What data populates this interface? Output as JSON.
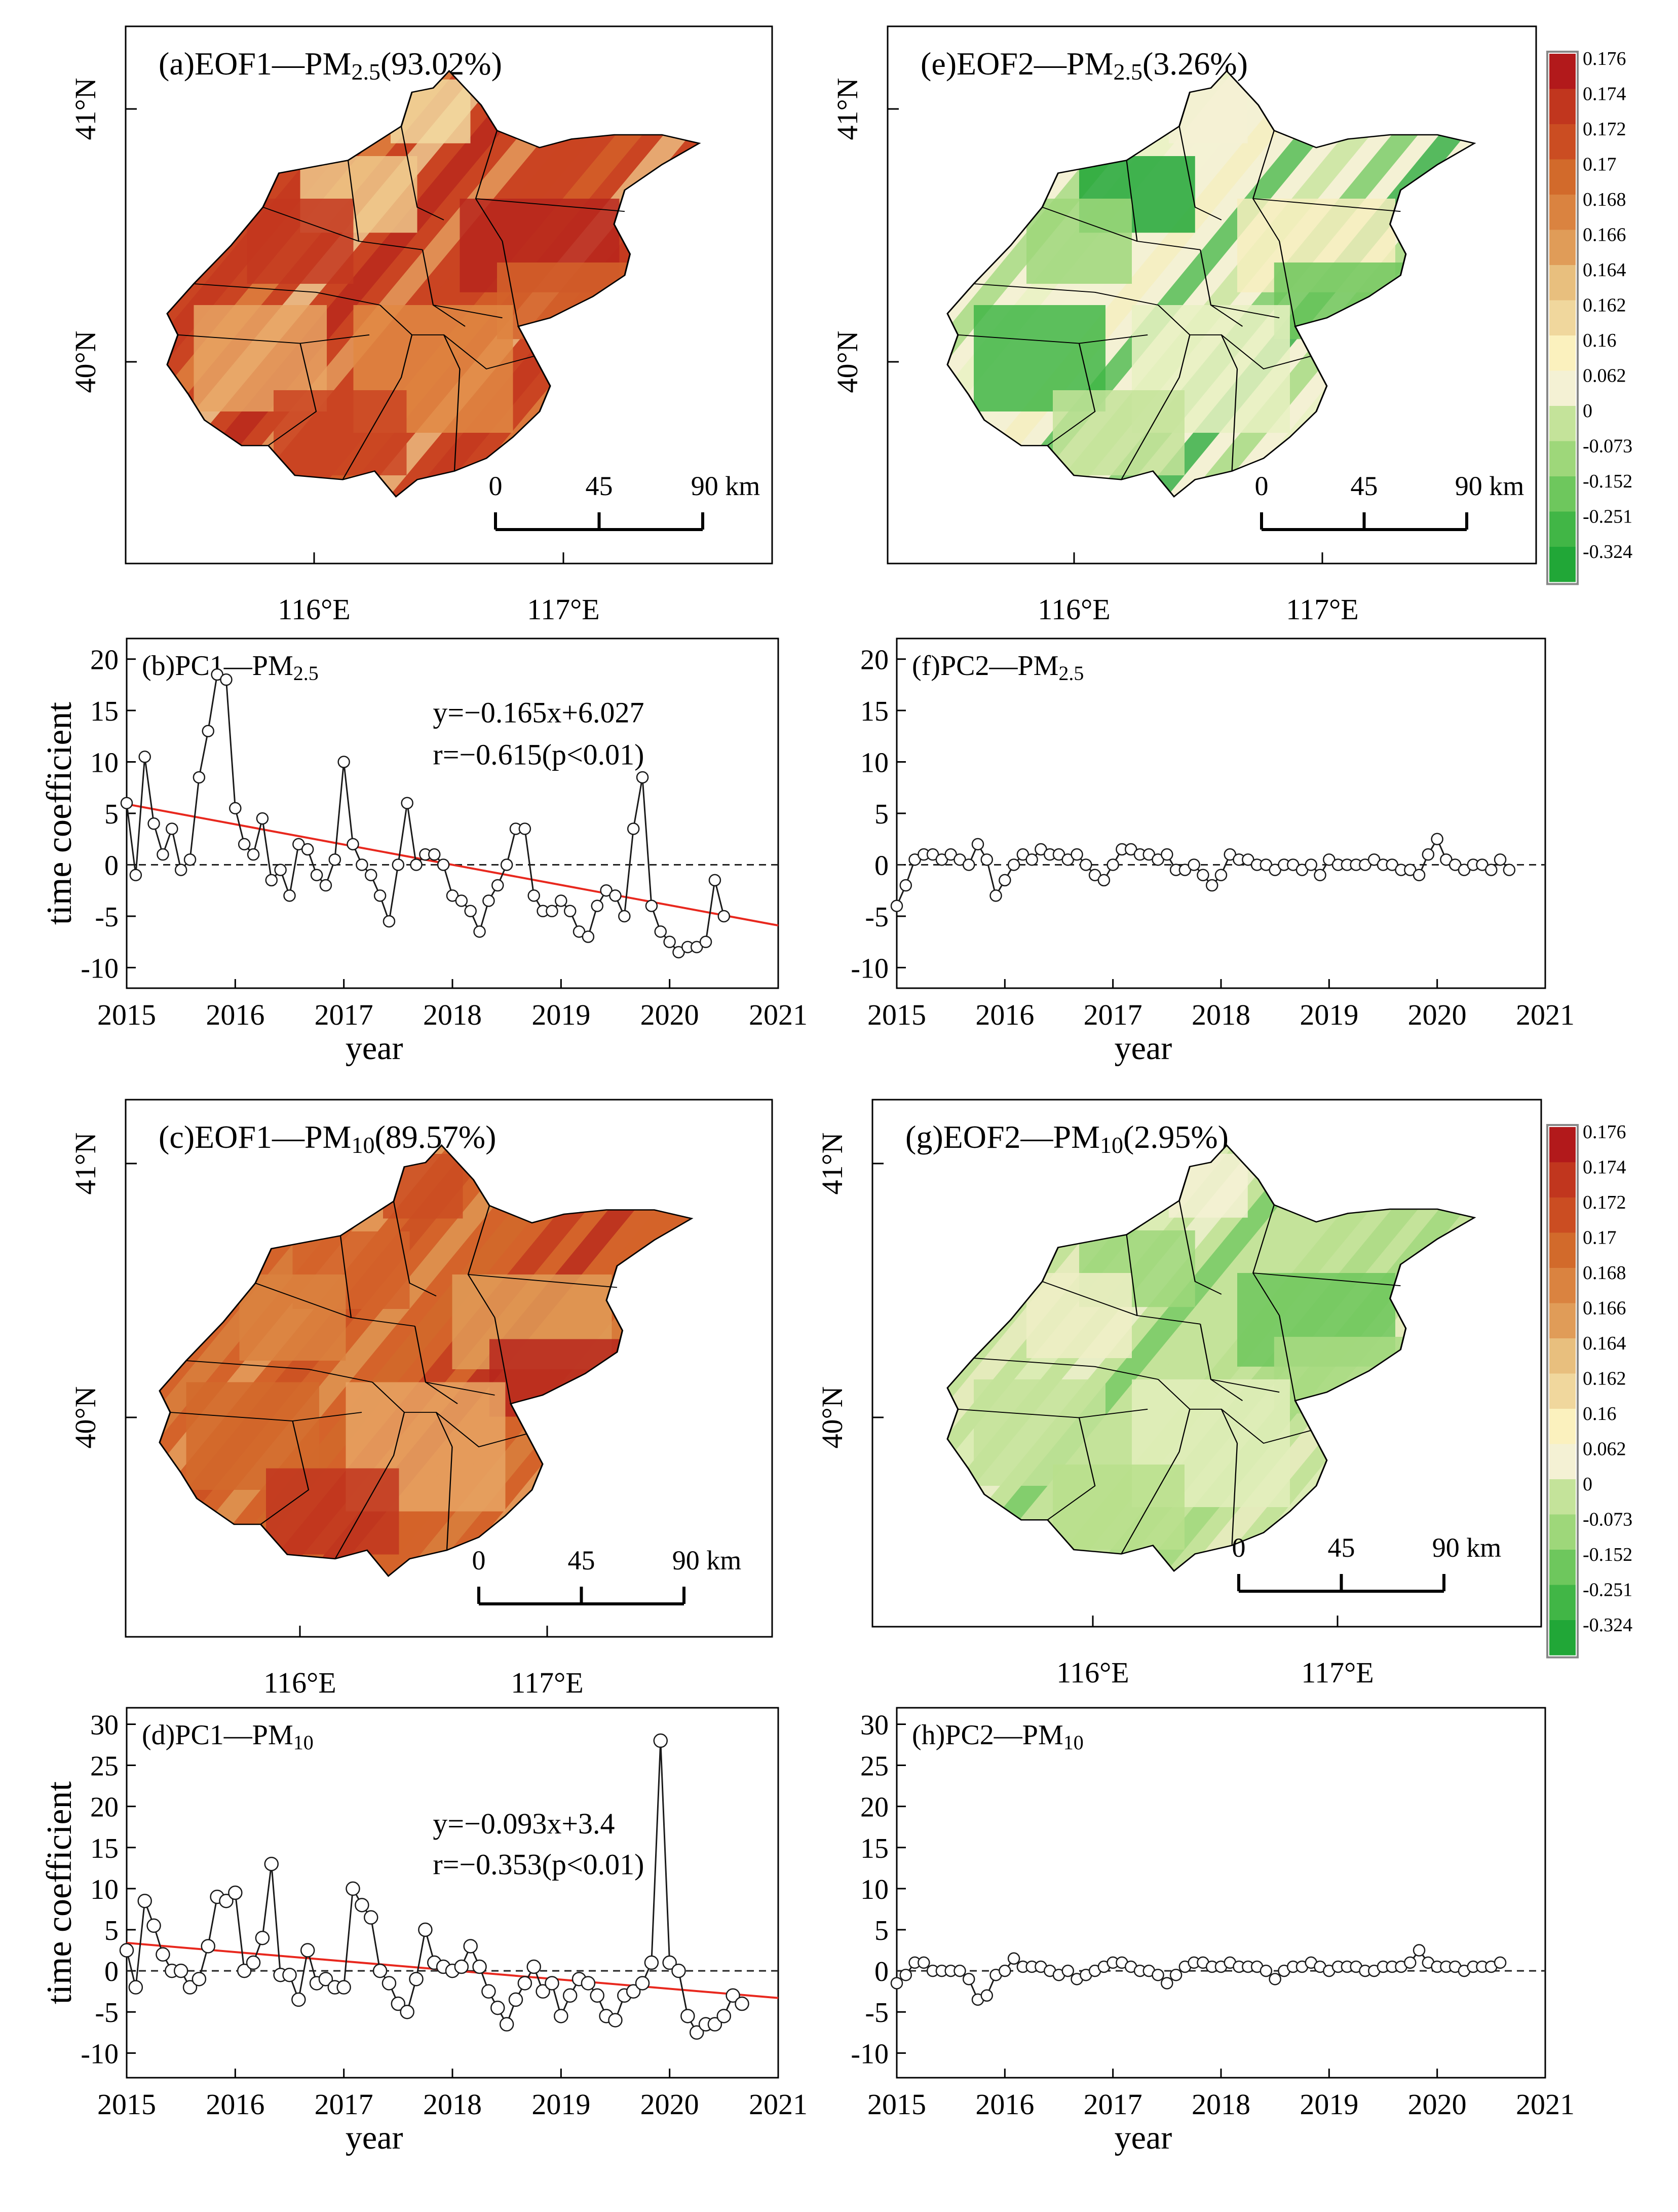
{
  "colors": {
    "trend": "#e8281e",
    "series": "#1a1a1a",
    "marker_fill": "#ffffff",
    "zero_line": "#222222",
    "legend_border": "#888888",
    "map_outline": "#000000",
    "scale_bar": "#000000"
  },
  "legend": {
    "labels": [
      "0.176",
      "0.174",
      "0.172",
      "0.17",
      "0.168",
      "0.166",
      "0.164",
      "0.162",
      "0.16",
      "0.062",
      "0",
      "-0.073",
      "-0.152",
      "-0.251",
      "-0.324"
    ],
    "colors": [
      "#b2191b",
      "#c1361e",
      "#cb4d22",
      "#d26a2b",
      "#da8340",
      "#e09c58",
      "#e8bf7e",
      "#f0d79d",
      "#fbf1be",
      "#f4f1d4",
      "#c4e39a",
      "#9ed77a",
      "#6ec75d",
      "#41b646",
      "#21a737"
    ]
  },
  "maps": [
    {
      "id": "a",
      "title_main": "(a)EOF1—PM",
      "title_sub": "2.5",
      "title_tail": "(93.02%)",
      "lat_labels": [
        "41°N",
        "40°N"
      ],
      "lon_labels": [
        "116°E",
        "117°E"
      ],
      "scale_labels": [
        "0",
        "45",
        "90 km"
      ],
      "palette": [
        "#ca4422",
        "#c3371f",
        "#b7261c",
        "#d4632a",
        "#e08843",
        "#e7a564",
        "#efc88b",
        "#f2d9a0"
      ]
    },
    {
      "id": "e",
      "title_main": "(e)EOF2—PM",
      "title_sub": "2.5",
      "title_tail": "(3.26%)",
      "lat_labels": [
        "41°N",
        "40°N"
      ],
      "lon_labels": [
        "116°E",
        "117°E"
      ],
      "scale_labels": [
        "0",
        "45",
        "90 km"
      ],
      "palette": [
        "#f4f1d4",
        "#c4e39a",
        "#9ed77a",
        "#f6eebe",
        "#6ec75d",
        "#e8f1c2",
        "#41b646",
        "#21a737"
      ]
    },
    {
      "id": "c",
      "title_main": "(c)EOF1—PM",
      "title_sub": "10",
      "title_tail": "(89.57%)",
      "lat_labels": [
        "41°N",
        "40°N"
      ],
      "lon_labels": [
        "116°E",
        "117°E"
      ],
      "scale_labels": [
        "0",
        "45",
        "90 km"
      ],
      "palette": [
        "#d4632a",
        "#cb4d22",
        "#c1361e",
        "#da8340",
        "#e09c58",
        "#b7261c",
        "#e7a564",
        "#d26a2b"
      ]
    },
    {
      "id": "g",
      "title_main": "(g)EOF2—PM",
      "title_sub": "10",
      "title_tail": "(2.95%)",
      "lat_labels": [
        "41°N",
        "40°N"
      ],
      "lon_labels": [
        "116°E",
        "117°E"
      ],
      "scale_labels": [
        "0",
        "45",
        "90 km"
      ],
      "palette": [
        "#c4e39a",
        "#9ed77a",
        "#f4f1d4",
        "#b8df8c",
        "#efeec6",
        "#6ec75d",
        "#a9da82",
        "#e3efbc"
      ]
    }
  ],
  "chart_data": [
    {
      "id": "b",
      "type": "line",
      "title_main": "(b)PC1—PM",
      "title_sub": "2.5",
      "ylabel": "time coefficient",
      "xlabel": "year",
      "xlim": [
        2015,
        2021
      ],
      "ylim": [
        -12,
        22
      ],
      "yticks": [
        -10,
        -5,
        0,
        5,
        10,
        15,
        20
      ],
      "xticks": [
        2015,
        2016,
        2017,
        2018,
        2019,
        2020,
        2021
      ],
      "equation": "y=−0.165x+6.027",
      "corr": "r=−0.615(p<0.01)",
      "trend_ends": [
        5.9,
        -5.9
      ],
      "x_start": 2015,
      "x_step": 0.08333,
      "values": [
        6,
        -1,
        10.5,
        4,
        1,
        3.5,
        -0.5,
        0.5,
        8.5,
        13,
        18.5,
        18,
        5.5,
        2,
        1,
        4.5,
        -1.5,
        -0.5,
        -3,
        2,
        1.5,
        -1,
        -2,
        0.5,
        10,
        2,
        0,
        -1,
        -3,
        -5.5,
        0,
        6,
        0,
        1,
        1,
        0,
        -3,
        -3.5,
        -4.5,
        -6.5,
        -3.5,
        -2,
        0,
        3.5,
        3.5,
        -3,
        -4.5,
        -4.5,
        -3.5,
        -4.5,
        -6.5,
        -7,
        -4,
        -2.5,
        -3,
        -5,
        3.5,
        8.5,
        -4,
        -6.5,
        -7.5,
        -8.5,
        -8,
        -8,
        -7.5,
        -1.5,
        -5
      ]
    },
    {
      "id": "f",
      "type": "line",
      "title_main": "(f)PC2—PM",
      "title_sub": "2.5",
      "ylabel": "",
      "xlabel": "year",
      "xlim": [
        2015,
        2021
      ],
      "ylim": [
        -12,
        22
      ],
      "yticks": [
        -10,
        -5,
        0,
        5,
        10,
        15,
        20
      ],
      "xticks": [
        2015,
        2016,
        2017,
        2018,
        2019,
        2020,
        2021
      ],
      "x_start": 2015,
      "x_step": 0.08333,
      "values": [
        -4,
        -2,
        0.5,
        1,
        1,
        0.5,
        1,
        0.5,
        0,
        2,
        0.5,
        -3,
        -1.5,
        0,
        1,
        0.5,
        1.5,
        1,
        1,
        0.5,
        1,
        0,
        -1,
        -1.5,
        0,
        1.5,
        1.5,
        1,
        1,
        0.5,
        1,
        -0.5,
        -0.5,
        0,
        -1,
        -2,
        -1,
        1,
        0.5,
        0.5,
        0,
        0,
        -0.5,
        0,
        0,
        -0.5,
        0,
        -1,
        0.5,
        0,
        0,
        0,
        0,
        0.5,
        0,
        0,
        -0.5,
        -0.5,
        -1,
        1,
        2.5,
        0.5,
        0,
        -0.5,
        0,
        0,
        -0.5,
        0.5,
        -0.5
      ]
    },
    {
      "id": "d",
      "type": "line",
      "title_main": "(d)PC1—PM",
      "title_sub": "10",
      "ylabel": "time coefficient",
      "xlabel": "year",
      "xlim": [
        2015,
        2021
      ],
      "ylim": [
        -13,
        32
      ],
      "yticks": [
        -10,
        -5,
        0,
        5,
        10,
        15,
        20,
        25,
        30
      ],
      "xticks": [
        2015,
        2016,
        2017,
        2018,
        2019,
        2020,
        2021
      ],
      "equation": "y=−0.093x+3.4",
      "corr": "r=−0.353(p<0.01)",
      "trend_ends": [
        3.4,
        -3.3
      ],
      "x_start": 2015,
      "x_step": 0.08333,
      "values": [
        2.5,
        -2,
        8.5,
        5.5,
        2,
        0,
        0,
        -2,
        -1,
        3,
        9,
        8.5,
        9.5,
        0,
        1,
        4,
        13,
        -0.5,
        -0.5,
        -3.5,
        2.5,
        -1.5,
        -1,
        -2,
        -2,
        10,
        8,
        6.5,
        0,
        -1.5,
        -4,
        -5,
        -1,
        5,
        1,
        0.5,
        0,
        0.5,
        3,
        0.5,
        -2.5,
        -4.5,
        -6.5,
        -3.5,
        -1.5,
        0.5,
        -2.5,
        -1.5,
        -5.5,
        -3,
        -1,
        -1.5,
        -3,
        -5.5,
        -6,
        -3,
        -2.5,
        -1.5,
        1,
        28,
        1,
        0,
        -5.5,
        -7.5,
        -6.5,
        -6.5,
        -5.5,
        -3,
        -4
      ]
    },
    {
      "id": "h",
      "type": "line",
      "title_main": "(h)PC2—PM",
      "title_sub": "10",
      "ylabel": "",
      "xlabel": "year",
      "xlim": [
        2015,
        2021
      ],
      "ylim": [
        -13,
        32
      ],
      "yticks": [
        -10,
        -5,
        0,
        5,
        10,
        15,
        20,
        25,
        30
      ],
      "xticks": [
        2015,
        2016,
        2017,
        2018,
        2019,
        2020,
        2021
      ],
      "x_start": 2015,
      "x_step": 0.08333,
      "values": [
        -1.5,
        -0.5,
        1,
        1,
        0,
        0,
        0,
        0,
        -1,
        -3.5,
        -3,
        -0.5,
        0,
        1.5,
        0.5,
        0.5,
        0.5,
        0,
        -0.5,
        0,
        -1,
        -0.5,
        0,
        0.5,
        1,
        1,
        0.5,
        0,
        0,
        -0.5,
        -1.5,
        -0.5,
        0.5,
        1,
        1,
        0.5,
        0.5,
        1,
        0.5,
        0.5,
        0.5,
        0,
        -1,
        0,
        0.5,
        0.5,
        1,
        0.5,
        0,
        0.5,
        0.5,
        0.5,
        0,
        0,
        0.5,
        0.5,
        0.5,
        1,
        2.5,
        1,
        0.5,
        0.5,
        0.5,
        0,
        0.5,
        0.5,
        0.5,
        1
      ]
    }
  ]
}
